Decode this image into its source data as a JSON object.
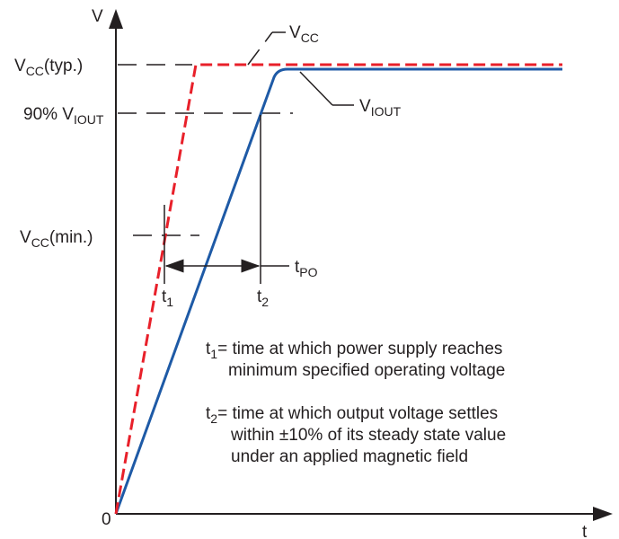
{
  "axes": {
    "y_label": "V",
    "x_label": "t",
    "origin_label": "0"
  },
  "levels": {
    "vcc_typ": {
      "main": "V",
      "sub": "CC",
      "suffix": "(typ.)"
    },
    "v90": {
      "prefix": "90% V",
      "sub": "IOUT"
    },
    "vcc_min": {
      "main": "V",
      "sub": "CC",
      "suffix": "(min.)"
    }
  },
  "curves": {
    "vcc": {
      "main": "V",
      "sub": "CC",
      "color": "#e8202a"
    },
    "viout": {
      "main": "V",
      "sub": "IOUT",
      "color": "#1e5aa6"
    }
  },
  "markers": {
    "t1": {
      "main": "t",
      "sub": "1"
    },
    "t2": {
      "main": "t",
      "sub": "2"
    },
    "tpo": {
      "main": "t",
      "sub": "PO"
    }
  },
  "notes": {
    "t1": {
      "main": "t",
      "sub": "1",
      "text": "= time at which power supply reaches",
      "line2": "minimum specified operating voltage"
    },
    "t2": {
      "main": "t",
      "sub": "2",
      "text": "= time at which output voltage settles",
      "line2": "within ±10% of its steady state value",
      "line3": "under an applied magnetic field"
    }
  }
}
